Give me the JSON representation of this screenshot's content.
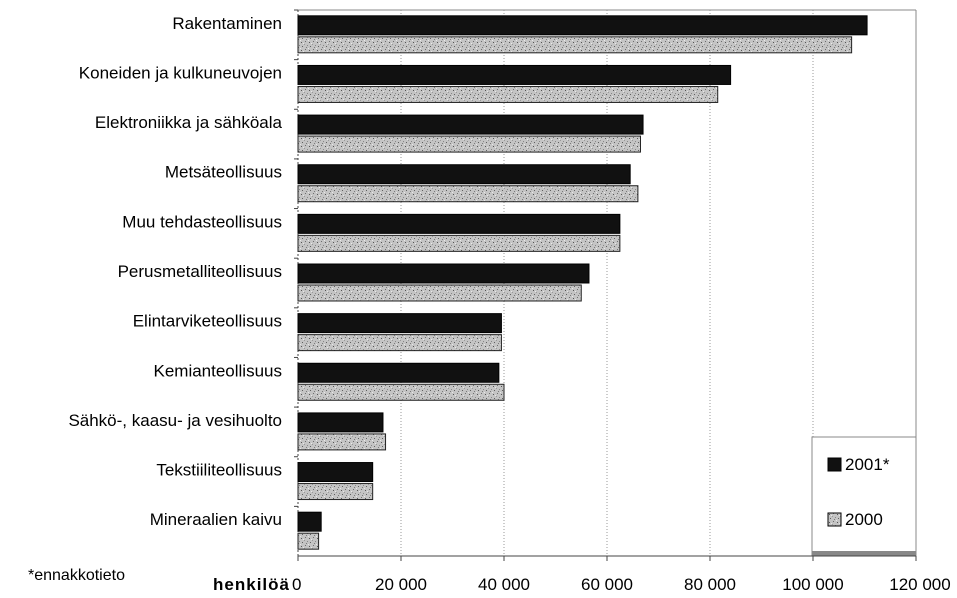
{
  "chart_data": {
    "type": "bar",
    "orientation": "horizontal",
    "categories": [
      "Rakentaminen",
      "Koneiden ja kulkuneuvojen",
      "Elektroniikka ja sähköala",
      "Metsäteollisuus",
      "Muu tehdasteollisuus",
      "Perusmetalliteollisuus",
      "Elintarviketeollisuus",
      "Kemianteollisuus",
      "Sähkö-, kaasu- ja vesihuolto",
      "Tekstiiliteollisuus",
      "Mineraalien kaivu"
    ],
    "series": [
      {
        "name": "2001*",
        "color": "#111111",
        "pattern": "solid",
        "values": [
          110500,
          84000,
          67000,
          64500,
          62500,
          56500,
          39500,
          39000,
          16500,
          14500,
          4500
        ]
      },
      {
        "name": "2000",
        "color": "#bdbdbd",
        "pattern": "speckled",
        "values": [
          107500,
          81500,
          66500,
          66000,
          62500,
          55000,
          39500,
          40000,
          17000,
          14500,
          4000
        ]
      }
    ],
    "x_ticks": [
      "0",
      "20 000",
      "40 000",
      "60 000",
      "80 000",
      "100 000",
      "120 000"
    ],
    "xlim": [
      0,
      120000
    ],
    "xlabel": "henkilöä",
    "grid": "vertical",
    "legend_position": "bottom-right",
    "footnote": "*ennakkotieto"
  }
}
